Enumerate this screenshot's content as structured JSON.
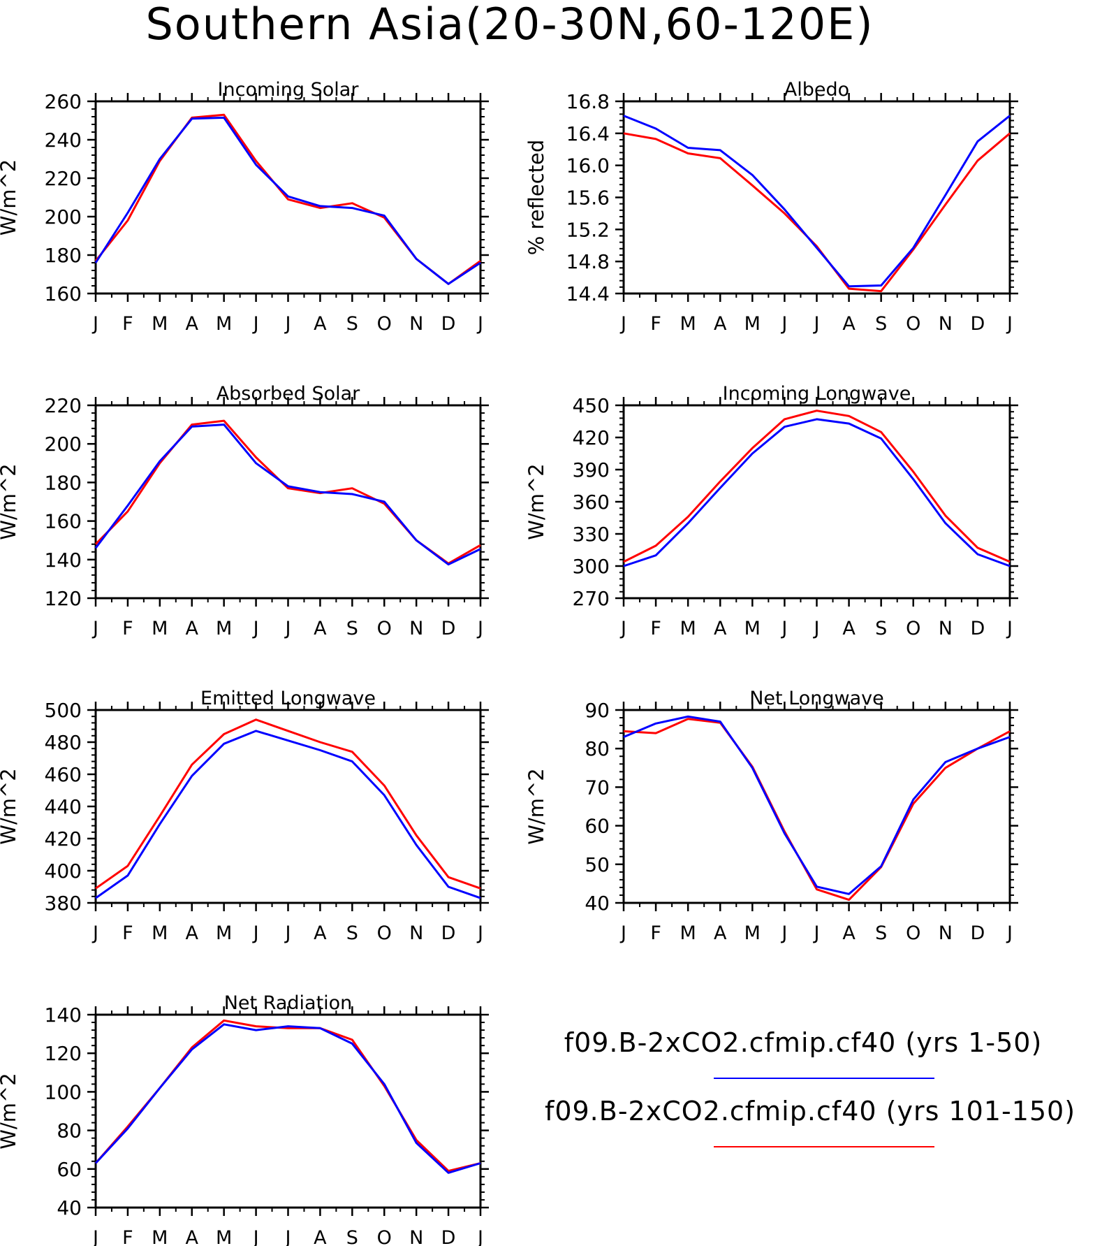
{
  "title": "Southern Asia(20-30N,60-120E)",
  "legend": {
    "entries": [
      {
        "label": "f09.B-2xCO2.cfmip.cf40 (yrs 1-50)",
        "color": "#0000ff"
      },
      {
        "label": "f09.B-2xCO2.cfmip.cf40 (yrs 101-150)",
        "color": "#ff0000"
      }
    ]
  },
  "chart_data": [
    {
      "type": "line",
      "title": "Incoming Solar",
      "ylabel": "W/m^2",
      "xlabel": "",
      "categories": [
        "J",
        "F",
        "M",
        "A",
        "M",
        "J",
        "J",
        "A",
        "S",
        "O",
        "N",
        "D",
        "J"
      ],
      "ylim": [
        160,
        260
      ],
      "yticks": [
        "160",
        "180",
        "200",
        "220",
        "240",
        "260"
      ],
      "grid": false,
      "series": [
        {
          "name": "f09.B-2xCO2.cfmip.cf40 (yrs 1-50)",
          "color": "#0000ff",
          "values": [
            176,
            202,
            230,
            251,
            251.5,
            227,
            210.5,
            205.5,
            204.5,
            200.5,
            178,
            165,
            176
          ]
        },
        {
          "name": "f09.B-2xCO2.cfmip.cf40 (yrs 101-150)",
          "color": "#ff0000",
          "values": [
            177,
            198,
            229,
            251.5,
            253,
            229,
            209,
            204.5,
            207,
            199.5,
            178,
            165,
            177
          ]
        }
      ]
    },
    {
      "type": "line",
      "title": "Albedo",
      "ylabel": "% reflected",
      "xlabel": "",
      "categories": [
        "J",
        "F",
        "M",
        "A",
        "M",
        "J",
        "J",
        "A",
        "S",
        "O",
        "N",
        "D",
        "J"
      ],
      "ylim": [
        14.4,
        16.8
      ],
      "yticks": [
        "14.4",
        "14.8",
        "15.2",
        "15.6",
        "16.0",
        "16.4",
        "16.8"
      ],
      "grid": false,
      "series": [
        {
          "name": "f09.B-2xCO2.cfmip.cf40 (yrs 1-50)",
          "color": "#0000ff",
          "values": [
            16.62,
            16.46,
            16.22,
            16.19,
            15.88,
            15.45,
            14.97,
            14.49,
            14.5,
            14.97,
            15.63,
            16.3,
            16.62
          ]
        },
        {
          "name": "f09.B-2xCO2.cfmip.cf40 (yrs 101-150)",
          "color": "#ff0000",
          "values": [
            16.4,
            16.33,
            16.15,
            16.09,
            15.75,
            15.4,
            14.99,
            14.46,
            14.43,
            14.95,
            15.51,
            16.06,
            16.4
          ]
        }
      ]
    },
    {
      "type": "line",
      "title": "Absorbed Solar",
      "ylabel": "W/m^2",
      "xlabel": "",
      "categories": [
        "J",
        "F",
        "M",
        "A",
        "M",
        "J",
        "J",
        "A",
        "S",
        "O",
        "N",
        "D",
        "J"
      ],
      "ylim": [
        120,
        220
      ],
      "yticks": [
        "120",
        "140",
        "160",
        "180",
        "200",
        "220"
      ],
      "grid": false,
      "series": [
        {
          "name": "f09.B-2xCO2.cfmip.cf40 (yrs 1-50)",
          "color": "#0000ff",
          "values": [
            146,
            168,
            191,
            209,
            210,
            190,
            178,
            175,
            174,
            170,
            150,
            137.5,
            145.5
          ]
        },
        {
          "name": "f09.B-2xCO2.cfmip.cf40 (yrs 101-150)",
          "color": "#ff0000",
          "values": [
            148,
            165,
            190,
            210,
            212,
            193,
            177,
            174.5,
            177,
            169,
            150,
            138,
            147.5
          ]
        }
      ]
    },
    {
      "type": "line",
      "title": "Incoming Longwave",
      "ylabel": "W/m^2",
      "xlabel": "",
      "categories": [
        "J",
        "F",
        "M",
        "A",
        "M",
        "J",
        "J",
        "A",
        "S",
        "O",
        "N",
        "D",
        "J"
      ],
      "ylim": [
        270,
        450
      ],
      "yticks": [
        "270",
        "300",
        "330",
        "360",
        "390",
        "420",
        "450"
      ],
      "grid": false,
      "series": [
        {
          "name": "f09.B-2xCO2.cfmip.cf40 (yrs 1-50)",
          "color": "#0000ff",
          "values": [
            300,
            310,
            340,
            373,
            405,
            430,
            437,
            433,
            419,
            381,
            340,
            311,
            300
          ]
        },
        {
          "name": "f09.B-2xCO2.cfmip.cf40 (yrs 101-150)",
          "color": "#ff0000",
          "values": [
            304,
            319,
            346,
            379,
            410,
            437,
            445,
            440,
            425,
            388,
            347,
            317,
            304
          ]
        }
      ]
    },
    {
      "type": "line",
      "title": "Emitted Longwave",
      "ylabel": "W/m^2",
      "xlabel": "",
      "categories": [
        "J",
        "F",
        "M",
        "A",
        "M",
        "J",
        "J",
        "A",
        "S",
        "O",
        "N",
        "D",
        "J"
      ],
      "ylim": [
        380,
        500
      ],
      "yticks": [
        "380",
        "400",
        "420",
        "440",
        "460",
        "480",
        "500"
      ],
      "grid": false,
      "series": [
        {
          "name": "f09.B-2xCO2.cfmip.cf40 (yrs 1-50)",
          "color": "#0000ff",
          "values": [
            383,
            397,
            429,
            459,
            479,
            487,
            481,
            475,
            468,
            447,
            416,
            390,
            383
          ]
        },
        {
          "name": "f09.B-2xCO2.cfmip.cf40 (yrs 101-150)",
          "color": "#ff0000",
          "values": [
            389,
            403,
            434,
            466,
            485,
            494,
            487,
            480,
            474,
            453,
            422,
            396,
            389
          ]
        }
      ]
    },
    {
      "type": "line",
      "title": "Net Longwave",
      "ylabel": "W/m^2",
      "xlabel": "",
      "categories": [
        "J",
        "F",
        "M",
        "A",
        "M",
        "J",
        "J",
        "A",
        "S",
        "O",
        "N",
        "D",
        "J"
      ],
      "ylim": [
        40,
        90
      ],
      "yticks": [
        "40",
        "50",
        "60",
        "70",
        "80",
        "90"
      ],
      "grid": false,
      "series": [
        {
          "name": "f09.B-2xCO2.cfmip.cf40 (yrs 1-50)",
          "color": "#0000ff",
          "values": [
            83,
            86.5,
            88.3,
            87,
            75,
            58,
            44.2,
            42.3,
            49.5,
            66.8,
            76.5,
            80,
            83
          ]
        },
        {
          "name": "f09.B-2xCO2.cfmip.cf40 (yrs 101-150)",
          "color": "#ff0000",
          "values": [
            84.5,
            84,
            87.7,
            86.7,
            75.3,
            58.5,
            43.5,
            40.8,
            49.3,
            65.7,
            75,
            80,
            84.5
          ]
        }
      ]
    },
    {
      "type": "line",
      "title": "Net Radiation",
      "ylabel": "W/m^2",
      "xlabel": "",
      "categories": [
        "J",
        "F",
        "M",
        "A",
        "M",
        "J",
        "J",
        "A",
        "S",
        "O",
        "N",
        "D",
        "J"
      ],
      "ylim": [
        40,
        140
      ],
      "yticks": [
        "40",
        "60",
        "80",
        "100",
        "120",
        "140"
      ],
      "grid": false,
      "series": [
        {
          "name": "f09.B-2xCO2.cfmip.cf40 (yrs 1-50)",
          "color": "#0000ff",
          "values": [
            63,
            81,
            102,
            122,
            135,
            132,
            134,
            133,
            125,
            104,
            73.5,
            58,
            63
          ]
        },
        {
          "name": "f09.B-2xCO2.cfmip.cf40 (yrs 101-150)",
          "color": "#ff0000",
          "values": [
            63,
            82,
            102,
            123,
            137,
            134,
            133,
            133,
            127,
            103,
            75,
            59,
            63
          ]
        }
      ]
    }
  ]
}
